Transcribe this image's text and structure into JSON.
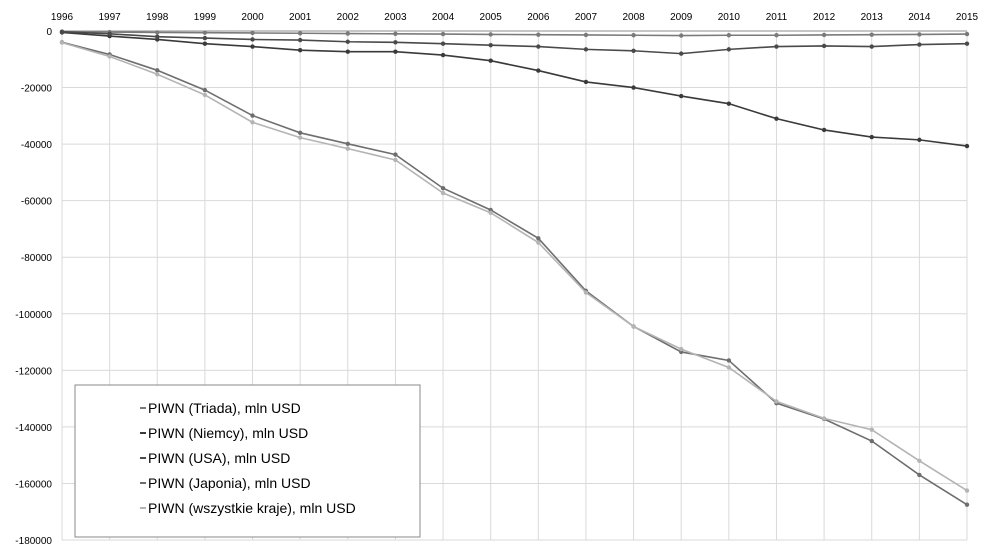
{
  "chart_data": {
    "type": "line",
    "title": "",
    "xlabel": "",
    "ylabel": "",
    "x": [
      1996,
      1997,
      1998,
      1999,
      2000,
      2001,
      2002,
      2003,
      2004,
      2005,
      2006,
      2007,
      2008,
      2009,
      2010,
      2011,
      2012,
      2013,
      2014,
      2015
    ],
    "x_tick_labels": [
      "1996",
      "1997",
      "1998",
      "1999",
      "2000",
      "2001",
      "2002",
      "2003",
      "2004",
      "2005",
      "2006",
      "2007",
      "2008",
      "2009",
      "2010",
      "2011",
      "2012",
      "2013",
      "2014",
      "2015"
    ],
    "ylim": [
      -180000,
      0
    ],
    "y_ticks": [
      0,
      -20000,
      -40000,
      -60000,
      -80000,
      -100000,
      -120000,
      -140000,
      -160000,
      -180000
    ],
    "y_tick_labels": [
      "0",
      "-20000",
      "-40000",
      "-60000",
      "-80000",
      "-100000",
      "-120000",
      "-140000",
      "-160000",
      "-180000"
    ],
    "x_axis_position": "top",
    "grid": true,
    "legend_position": "bottom-left",
    "series": [
      {
        "name": "PIWN (Triada), mln USD",
        "color": "#7a7a7a",
        "values": [
          -200,
          -400,
          -500,
          -600,
          -700,
          -800,
          -900,
          -1000,
          -1100,
          -1200,
          -1300,
          -1400,
          -1500,
          -1600,
          -1500,
          -1500,
          -1400,
          -1300,
          -1200,
          -1100
        ]
      },
      {
        "name": "PIWN (Niemcy), mln USD",
        "color": "#3a3a3a",
        "values": [
          -500,
          -1800,
          -3000,
          -4500,
          -5500,
          -6800,
          -7300,
          -7300,
          -8500,
          -10500,
          -14000,
          -18000,
          -20000,
          -23000,
          -25700,
          -31000,
          -35000,
          -37500,
          -38500,
          -40700
        ]
      },
      {
        "name": "PIWN (USA), mln USD",
        "color": "#4a4a4a",
        "values": [
          -300,
          -1000,
          -2000,
          -2500,
          -3000,
          -3200,
          -3800,
          -4000,
          -4500,
          -5000,
          -5500,
          -6500,
          -7000,
          -8000,
          -6500,
          -5500,
          -5300,
          -5500,
          -4800,
          -4500
        ]
      },
      {
        "name": "PIWN (Japonia), mln USD",
        "color": "#6e6e6e",
        "values": [
          -4000,
          -8300,
          -13900,
          -20900,
          -29900,
          -36000,
          -39900,
          -43700,
          -55600,
          -63300,
          -73300,
          -91900,
          -104500,
          -113500,
          -116500,
          -131600,
          -137200,
          -145000,
          -157000,
          -167500
        ]
      },
      {
        "name": "PIWN (wszystkie kraje), mln USD",
        "color": "#b4b4b4",
        "values": [
          -4100,
          -9000,
          -15300,
          -22600,
          -32300,
          -37700,
          -41600,
          -45600,
          -57300,
          -64300,
          -74800,
          -92500,
          -104500,
          -112500,
          -119000,
          -131000,
          -137000,
          -141000,
          -152000,
          -162500
        ]
      }
    ]
  }
}
